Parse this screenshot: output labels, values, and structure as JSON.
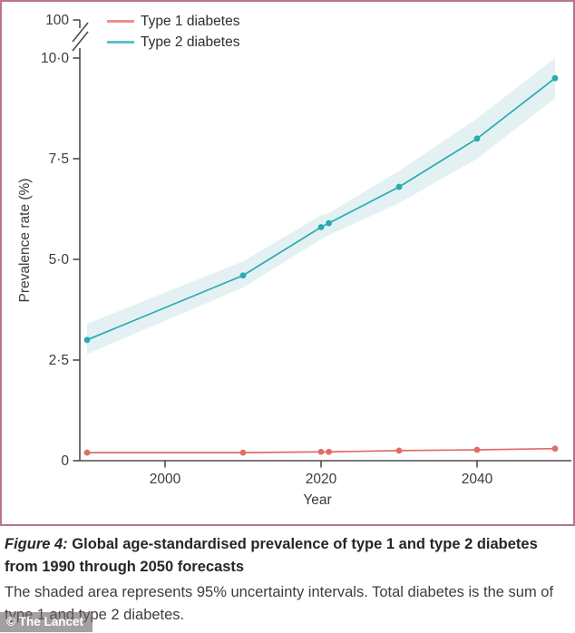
{
  "frame": {
    "border_color": "#b8758b"
  },
  "legend": {
    "items": [
      {
        "label": "Type 1 diabetes",
        "color": "#e06d68"
      },
      {
        "label": "Type 2 diabetes",
        "color": "#2aaab2"
      }
    ]
  },
  "chart_data": {
    "type": "line",
    "title": "",
    "xlabel": "Year",
    "ylabel": "Prevalence rate (%)",
    "xlim": [
      1990,
      2050
    ],
    "ylim": [
      0,
      10.35
    ],
    "grid": false,
    "legend_position": "top-left",
    "x_ticks": [
      2000,
      2020,
      2040
    ],
    "y_ticks": [
      {
        "value": 10,
        "label": "10·0"
      },
      {
        "value": 7.5,
        "label": "7·5"
      },
      {
        "value": 5,
        "label": "5·0"
      },
      {
        "value": 2.5,
        "label": "2·5"
      },
      {
        "value": 0,
        "label": "0"
      }
    ],
    "y_axis_break": {
      "top_label": "100"
    },
    "x": [
      1990,
      2010,
      2020,
      2021,
      2030,
      2040,
      2050
    ],
    "series": [
      {
        "name": "Type 1 diabetes",
        "color": "#e06d68",
        "values": [
          0.2,
          0.2,
          0.22,
          0.22,
          0.25,
          0.27,
          0.3
        ]
      },
      {
        "name": "Type 2 diabetes",
        "color": "#2aaab2",
        "band_color": "#e3f1f2",
        "values": [
          3.0,
          4.6,
          5.8,
          5.9,
          6.8,
          8.0,
          9.5
        ],
        "ci_upper": [
          3.4,
          4.95,
          6.1,
          6.15,
          7.2,
          8.5,
          10.0
        ],
        "ci_lower": [
          2.65,
          4.3,
          5.5,
          5.6,
          6.4,
          7.5,
          9.0
        ]
      }
    ]
  },
  "caption": {
    "figure_label": "Figure 4:",
    "title": "Global age-standardised prevalence of type 1 and type 2 diabetes from 1990 through 2050 forecasts",
    "body": "The shaded area represents 95% uncertainty intervals. Total diabetes is the sum of type 1 and type 2 diabetes."
  },
  "watermark": "© The Lancet"
}
